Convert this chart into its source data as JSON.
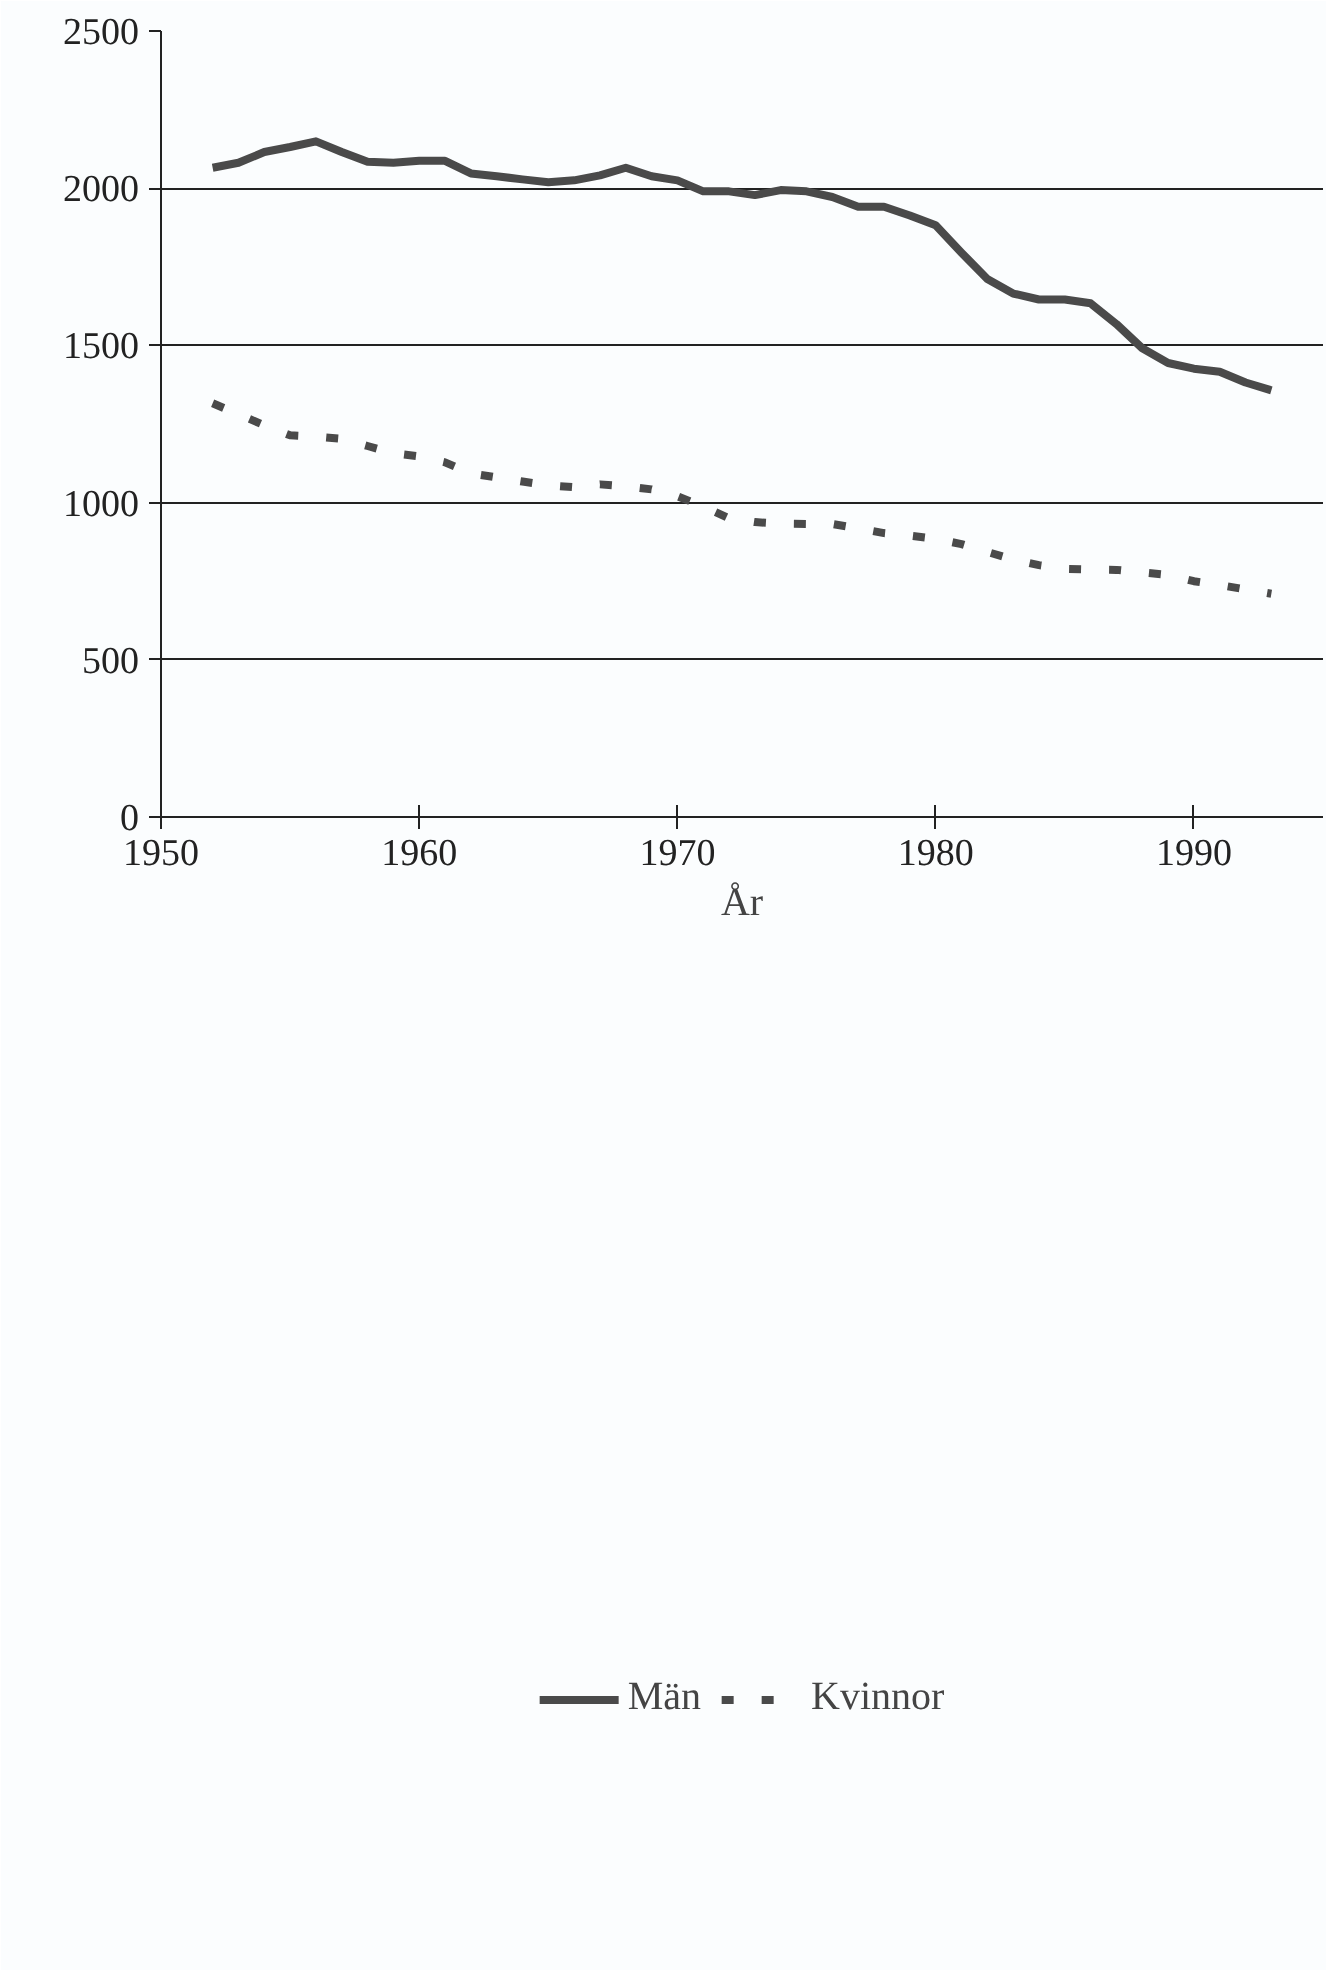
{
  "chart_data": {
    "type": "line",
    "xlabel": "År",
    "xlim": [
      1950,
      1995
    ],
    "xticks": [
      1950,
      1960,
      1970,
      1980,
      1990
    ],
    "ylim": [
      0,
      2500
    ],
    "yticks": [
      0,
      500,
      1000,
      1500,
      2000,
      2500
    ],
    "grid": "y",
    "legend": "bottom",
    "marker": "none",
    "x": [
      1952,
      1953,
      1954,
      1955,
      1956,
      1957,
      1958,
      1959,
      1960,
      1961,
      1962,
      1963,
      1964,
      1965,
      1966,
      1967,
      1968,
      1969,
      1970,
      1971,
      1972,
      1973,
      1974,
      1975,
      1976,
      1977,
      1978,
      1979,
      1980,
      1981,
      1982,
      1983,
      1984,
      1985,
      1986,
      1987,
      1988,
      1989,
      1990,
      1991,
      1992,
      1993
    ],
    "series": [
      {
        "name": "Män",
        "color": "#4a4a4a",
        "line_style": "solid",
        "values": [
          2065,
          2081,
          2115,
          2131,
          2149,
          2115,
          2084,
          2081,
          2087,
          2087,
          2047,
          2038,
          2028,
          2019,
          2025,
          2041,
          2065,
          2038,
          2025,
          1990,
          1990,
          1978,
          1994,
          1990,
          1972,
          1941,
          1941,
          1913,
          1882,
          1795,
          1711,
          1665,
          1646,
          1646,
          1634,
          1568,
          1491,
          1444,
          1426,
          1416,
          1382,
          1357
        ]
      },
      {
        "name": "Kvinnor",
        "color": "#4a4a4a",
        "line_style": "dashed",
        "values": [
          1316,
          1281,
          1246,
          1214,
          1210,
          1203,
          1180,
          1157,
          1147,
          1128,
          1093,
          1080,
          1067,
          1055,
          1049,
          1058,
          1052,
          1042,
          1020,
          988,
          950,
          938,
          933,
          932,
          932,
          918,
          903,
          895,
          885,
          868,
          843,
          819,
          801,
          789,
          787,
          786,
          778,
          770,
          750,
          738,
          724,
          710
        ]
      }
    ]
  }
}
